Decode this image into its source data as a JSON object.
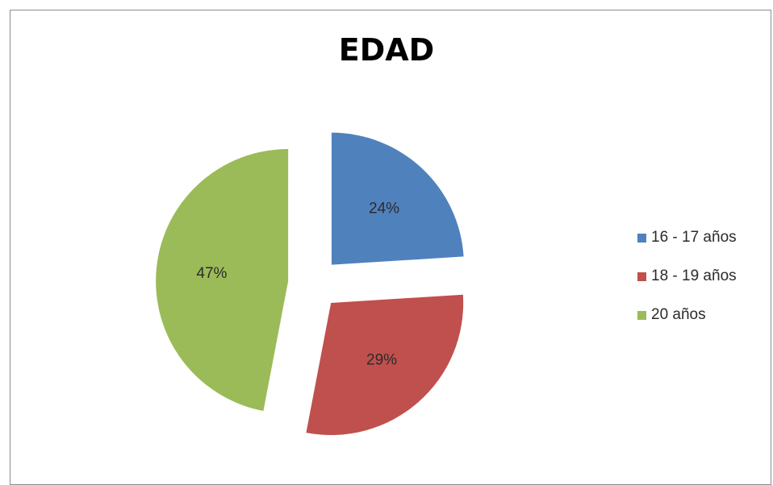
{
  "chart_data": {
    "type": "pie",
    "title": "EDAD",
    "categories": [
      "16 - 17 años",
      "18 - 19 años",
      "20 años"
    ],
    "values": [
      24,
      29,
      47
    ],
    "labels": [
      "24%",
      "29%",
      "47%"
    ],
    "colors": [
      "#4f81bd",
      "#c0504d",
      "#9bbb59"
    ],
    "legend_position": "right",
    "exploded": true
  }
}
